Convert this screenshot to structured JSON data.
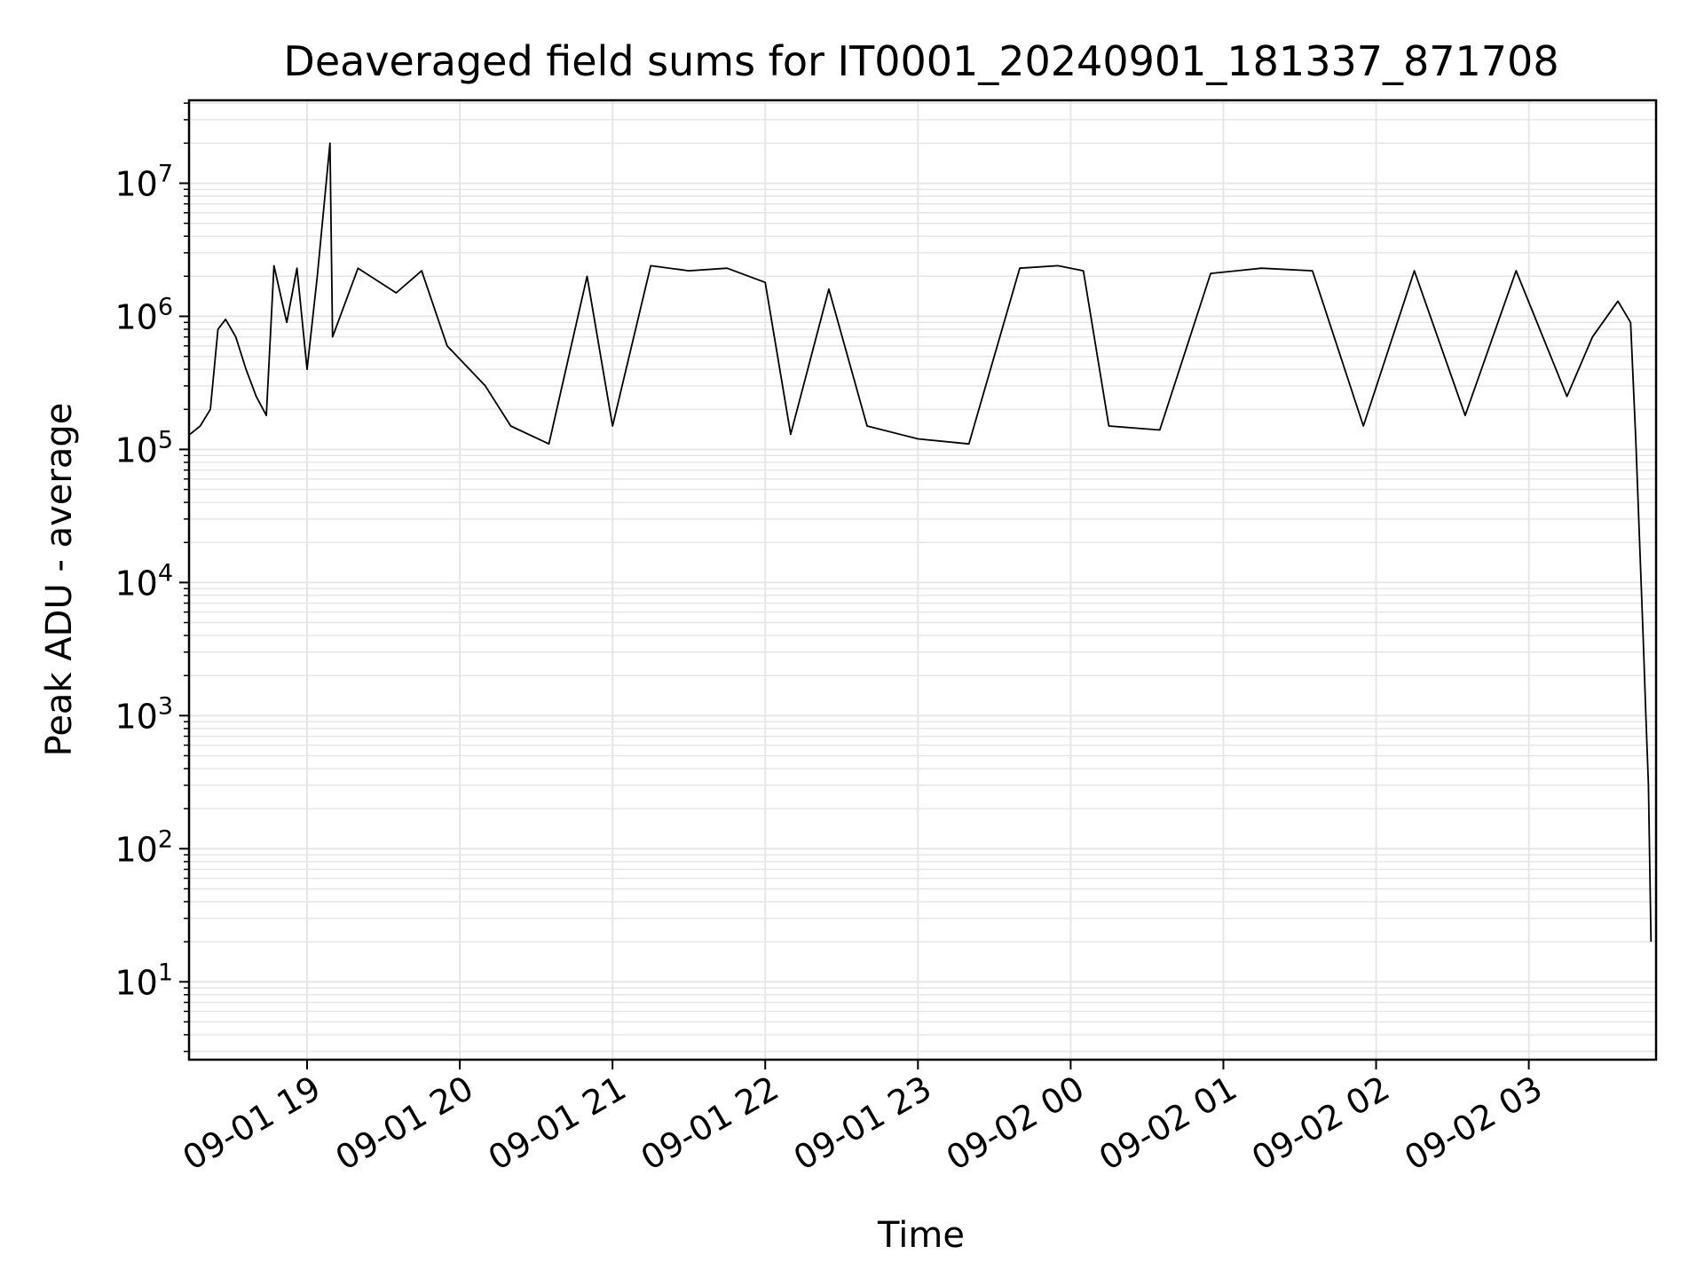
{
  "chart_data": {
    "type": "line",
    "title": "Deaveraged field sums for IT0001_20240901_181337_871708",
    "xlabel": "Time",
    "ylabel": "Peak ADU - average",
    "yscale": "log",
    "ylim": [
      2.6,
      42000000
    ],
    "xlim": [
      "2024-09-01 18:13:37",
      "2024-09-02 03:50:00"
    ],
    "grid": true,
    "colors": {
      "line": "#000000",
      "grid": "#e6e6e6"
    },
    "x_ticks": [
      {
        "label": "09-01 19",
        "time": "2024-09-01 19:00"
      },
      {
        "label": "09-01 20",
        "time": "2024-09-01 20:00"
      },
      {
        "label": "09-01 21",
        "time": "2024-09-01 21:00"
      },
      {
        "label": "09-01 22",
        "time": "2024-09-01 22:00"
      },
      {
        "label": "09-01 23",
        "time": "2024-09-01 23:00"
      },
      {
        "label": "09-02 00",
        "time": "2024-09-02 00:00"
      },
      {
        "label": "09-02 01",
        "time": "2024-09-02 01:00"
      },
      {
        "label": "09-02 02",
        "time": "2024-09-02 02:00"
      },
      {
        "label": "09-02 03",
        "time": "2024-09-02 03:00"
      }
    ],
    "y_ticks": [
      {
        "base": "10",
        "exp": "1",
        "value": 10
      },
      {
        "base": "10",
        "exp": "2",
        "value": 100
      },
      {
        "base": "10",
        "exp": "3",
        "value": 1000
      },
      {
        "base": "10",
        "exp": "4",
        "value": 10000
      },
      {
        "base": "10",
        "exp": "5",
        "value": 100000
      },
      {
        "base": "10",
        "exp": "6",
        "value": 1000000
      },
      {
        "base": "10",
        "exp": "7",
        "value": 10000000
      }
    ],
    "series": [
      {
        "values": [
          [
            "2024-09-01 18:14",
            130000
          ],
          [
            "2024-09-01 18:18",
            150000
          ],
          [
            "2024-09-01 18:22",
            200000
          ],
          [
            "2024-09-01 18:25",
            800000
          ],
          [
            "2024-09-01 18:28",
            950000
          ],
          [
            "2024-09-01 18:32",
            700000
          ],
          [
            "2024-09-01 18:36",
            400000
          ],
          [
            "2024-09-01 18:40",
            250000
          ],
          [
            "2024-09-01 18:44",
            180000
          ],
          [
            "2024-09-01 18:47",
            2400000
          ],
          [
            "2024-09-01 18:52",
            900000
          ],
          [
            "2024-09-01 18:56",
            2300000
          ],
          [
            "2024-09-01 19:00",
            400000
          ],
          [
            "2024-09-01 19:04",
            2000000
          ],
          [
            "2024-09-01 19:09",
            20000000
          ],
          [
            "2024-09-01 19:10",
            700000
          ],
          [
            "2024-09-01 19:20",
            2300000
          ],
          [
            "2024-09-01 19:35",
            1500000
          ],
          [
            "2024-09-01 19:45",
            2200000
          ],
          [
            "2024-09-01 19:55",
            600000
          ],
          [
            "2024-09-01 20:10",
            300000
          ],
          [
            "2024-09-01 20:20",
            150000
          ],
          [
            "2024-09-01 20:35",
            110000
          ],
          [
            "2024-09-01 20:50",
            2000000
          ],
          [
            "2024-09-01 21:00",
            150000
          ],
          [
            "2024-09-01 21:15",
            2400000
          ],
          [
            "2024-09-01 21:30",
            2200000
          ],
          [
            "2024-09-01 21:45",
            2300000
          ],
          [
            "2024-09-01 22:00",
            1800000
          ],
          [
            "2024-09-01 22:10",
            130000
          ],
          [
            "2024-09-01 22:25",
            1600000
          ],
          [
            "2024-09-01 22:40",
            150000
          ],
          [
            "2024-09-01 23:00",
            120000
          ],
          [
            "2024-09-01 23:20",
            110000
          ],
          [
            "2024-09-01 23:40",
            2300000
          ],
          [
            "2024-09-01 23:55",
            2400000
          ],
          [
            "2024-09-02 00:05",
            2200000
          ],
          [
            "2024-09-02 00:15",
            150000
          ],
          [
            "2024-09-02 00:35",
            140000
          ],
          [
            "2024-09-02 00:55",
            2100000
          ],
          [
            "2024-09-02 01:15",
            2300000
          ],
          [
            "2024-09-02 01:35",
            2200000
          ],
          [
            "2024-09-02 01:55",
            150000
          ],
          [
            "2024-09-02 02:15",
            2200000
          ],
          [
            "2024-09-02 02:35",
            180000
          ],
          [
            "2024-09-02 02:55",
            2200000
          ],
          [
            "2024-09-02 03:15",
            250000
          ],
          [
            "2024-09-02 03:25",
            700000
          ],
          [
            "2024-09-02 03:35",
            1300000
          ],
          [
            "2024-09-02 03:40",
            900000
          ],
          [
            "2024-09-02 03:42",
            120000
          ],
          [
            "2024-09-02 03:45",
            3500
          ],
          [
            "2024-09-02 03:46",
            1000
          ],
          [
            "2024-09-02 03:47",
            300
          ],
          [
            "2024-09-02 03:48",
            20
          ]
        ]
      }
    ]
  }
}
